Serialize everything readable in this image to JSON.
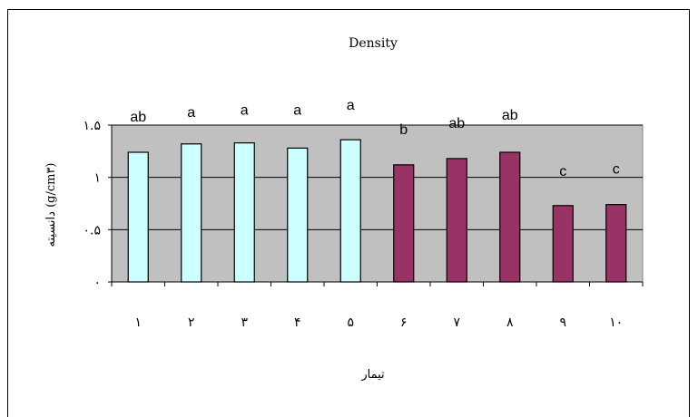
{
  "chart_data": {
    "type": "bar",
    "title": "Density",
    "xlabel": "تیمار",
    "ylabel": "دانسیته (g/cm۳)",
    "categories": [
      "۱",
      "۲",
      "۳",
      "۴",
      "۵",
      "۶",
      "۷",
      "۸",
      "۹",
      "۱۰"
    ],
    "y_ticks": [
      "۰",
      "۰.۵",
      "۱",
      "۱.۵"
    ],
    "y_tick_values": [
      0,
      0.5,
      1,
      1.5
    ],
    "ylim": [
      0,
      1.5
    ],
    "grid": true,
    "values": [
      1.24,
      1.32,
      1.33,
      1.28,
      1.36,
      1.12,
      1.18,
      1.24,
      0.73,
      0.74
    ],
    "letters": [
      "ab",
      "a",
      "a",
      "a",
      "a",
      "b",
      "ab",
      "ab",
      "c",
      "c"
    ],
    "bar_colors": [
      "#ccffff",
      "#ccffff",
      "#ccffff",
      "#ccffff",
      "#ccffff",
      "#993366",
      "#993366",
      "#993366",
      "#993366",
      "#993366"
    ],
    "plot_background": "#c0c0c0"
  }
}
